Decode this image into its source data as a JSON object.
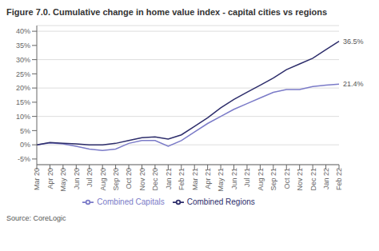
{
  "chart_data": {
    "type": "line",
    "title": "Figure 7.0. Cumulative change in home value index - capital cities vs regions",
    "source": "Source: CoreLogic",
    "categories": [
      "Mar 20",
      "Apr 20",
      "May 20",
      "Jun 20",
      "Jul 20",
      "Aug 20",
      "Sep 20",
      "Oct 20",
      "Nov 20",
      "Dec 20",
      "Jan 21",
      "Feb 21",
      "Mar 21",
      "Apr 21",
      "May 21",
      "Jun 21",
      "Jul 21",
      "Aug 21",
      "Sep 21",
      "Oct 21",
      "Nov 21",
      "Dec 21",
      "Jan 22",
      "Feb 22"
    ],
    "series": [
      {
        "name": "Combined Capitals",
        "color": "#7b7bc8",
        "values": [
          0.0,
          0.7,
          0.3,
          -0.5,
          -1.5,
          -2.0,
          -1.5,
          0.5,
          1.5,
          1.5,
          -0.5,
          1.5,
          4.5,
          7.5,
          10.0,
          12.5,
          14.5,
          16.5,
          18.5,
          19.5,
          19.5,
          20.5,
          21.0,
          21.4
        ]
      },
      {
        "name": "Combined Regions",
        "color": "#2d2d6b",
        "values": [
          0.0,
          0.8,
          0.5,
          0.3,
          0.0,
          0.0,
          0.5,
          1.5,
          2.5,
          2.8,
          2.0,
          3.5,
          6.5,
          9.5,
          13.0,
          16.0,
          18.5,
          21.0,
          23.5,
          26.5,
          28.5,
          30.5,
          33.5,
          36.5
        ]
      }
    ],
    "annotations": [
      {
        "text": "36.5%",
        "x": "Feb 22",
        "y": 36.5
      },
      {
        "text": "21.4%",
        "x": "Feb 22",
        "y": 21.4
      }
    ],
    "ylim": [
      -7,
      42
    ],
    "yticks": [
      {
        "value": -5,
        "label": "-5%"
      },
      {
        "value": 0,
        "label": "0%"
      },
      {
        "value": 5,
        "label": "5%"
      },
      {
        "value": 10,
        "label": "10%"
      },
      {
        "value": 15,
        "label": "15%"
      },
      {
        "value": 20,
        "label": "20%"
      },
      {
        "value": 25,
        "label": "25%"
      },
      {
        "value": 30,
        "label": "30%"
      },
      {
        "value": 35,
        "label": "35%"
      },
      {
        "value": 40,
        "label": "40%"
      }
    ],
    "grid": true,
    "legend": "bottom"
  }
}
